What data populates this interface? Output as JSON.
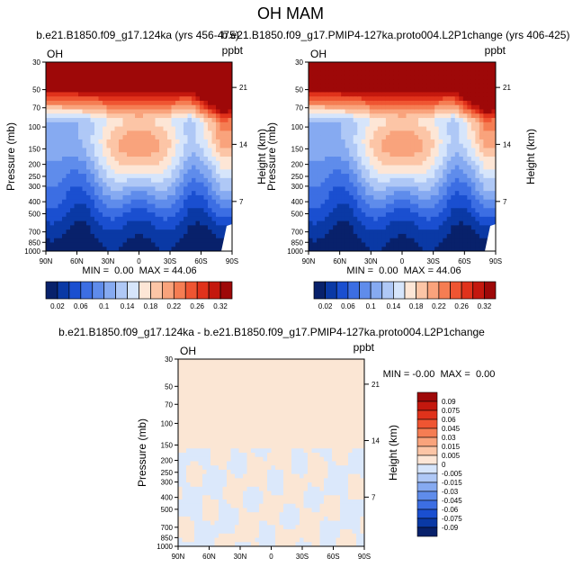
{
  "page_title": "OH MAM",
  "colors": {
    "diverging": [
      "#08216b",
      "#0a39a5",
      "#1a4fd0",
      "#3c6ee3",
      "#5f8ceb",
      "#86aaf1",
      "#afc8f6",
      "#d6e5fb",
      "#fde6d6",
      "#fcc5a6",
      "#f9a37c",
      "#f57d53",
      "#ef5532",
      "#e0321b",
      "#c4180e",
      "#9e0808"
    ],
    "plot_background": "#fbe6d4",
    "diff_negative": "#dbe8fb"
  },
  "chart_data": [
    {
      "type": "heatmap",
      "panel": "left",
      "title": "b.e21.B1850.f09_g17.124ka (yrs 456-475)",
      "left_label": "OH",
      "right_label": "ppbt",
      "xlabel": "",
      "ylabel": "Pressure (mb)",
      "right_axis_label": "Height (km)",
      "x_ticks": [
        "90N",
        "60N",
        "30N",
        "0",
        "30S",
        "60S",
        "90S"
      ],
      "x_tick_values": [
        90,
        60,
        30,
        0,
        -30,
        -60,
        -90
      ],
      "y_ticks": [
        "30",
        "50",
        "70",
        "100",
        "150",
        "200",
        "250",
        "300",
        "400",
        "500",
        "700",
        "850",
        "1000"
      ],
      "y_tick_values": [
        30,
        50,
        70,
        100,
        150,
        200,
        250,
        300,
        400,
        500,
        700,
        850,
        1000
      ],
      "height_ticks": [
        "21",
        "14",
        "7"
      ],
      "height_tick_pressures": [
        48,
        138,
        398
      ],
      "stats": {
        "min": "0.00",
        "max": "44.06",
        "text": "MIN =  0.00  MAX = 44.06"
      },
      "colorbar_labels": [
        "0.02",
        "0.06",
        "0.1",
        "0.14",
        "0.18",
        "0.22",
        "0.26",
        "0.32"
      ],
      "colorbar_levels": [
        0.02,
        0.04,
        0.06,
        0.08,
        0.1,
        0.12,
        0.14,
        0.16,
        0.18,
        0.2,
        0.22,
        0.24,
        0.26,
        0.28,
        0.32
      ],
      "ylim": [
        1000,
        30
      ],
      "xlim": [
        90,
        -90
      ]
    },
    {
      "type": "heatmap",
      "panel": "right",
      "title": "b.e21.B1850.f09_g17.PMIP4-127ka.proto004.L2P1change (yrs 406-425)",
      "left_label": "OH",
      "right_label": "ppbt",
      "xlabel": "",
      "ylabel": "Pressure (mb)",
      "right_axis_label": "Height (km)",
      "x_ticks": [
        "90N",
        "60N",
        "30N",
        "0",
        "30S",
        "60S",
        "90S"
      ],
      "x_tick_values": [
        90,
        60,
        30,
        0,
        -30,
        -60,
        -90
      ],
      "y_ticks": [
        "30",
        "50",
        "70",
        "100",
        "150",
        "200",
        "250",
        "300",
        "400",
        "500",
        "700",
        "850",
        "1000"
      ],
      "y_tick_values": [
        30,
        50,
        70,
        100,
        150,
        200,
        250,
        300,
        400,
        500,
        700,
        850,
        1000
      ],
      "height_ticks": [
        "21",
        "14",
        "7"
      ],
      "height_tick_pressures": [
        48,
        138,
        398
      ],
      "stats": {
        "min": "0.00",
        "max": "44.06",
        "text": "MIN =  0.00  MAX = 44.06"
      },
      "colorbar_labels": [
        "0.02",
        "0.06",
        "0.1",
        "0.14",
        "0.18",
        "0.22",
        "0.26",
        "0.32"
      ],
      "colorbar_levels": [
        0.02,
        0.04,
        0.06,
        0.08,
        0.1,
        0.12,
        0.14,
        0.16,
        0.18,
        0.2,
        0.22,
        0.24,
        0.26,
        0.28,
        0.32
      ],
      "ylim": [
        1000,
        30
      ],
      "xlim": [
        90,
        -90
      ]
    },
    {
      "type": "heatmap",
      "panel": "difference",
      "title": "b.e21.B1850.f09_g17.124ka - b.e21.B1850.f09_g17.PMIP4-127ka.proto004.L2P1change",
      "left_label": "OH",
      "right_label": "ppbt",
      "xlabel": "",
      "ylabel": "Pressure (mb)",
      "right_axis_label": "Height (km)",
      "x_ticks": [
        "90N",
        "60N",
        "30N",
        "0",
        "30S",
        "60S",
        "90S"
      ],
      "x_tick_values": [
        90,
        60,
        30,
        0,
        -30,
        -60,
        -90
      ],
      "y_ticks": [
        "30",
        "50",
        "70",
        "100",
        "150",
        "200",
        "250",
        "300",
        "400",
        "500",
        "700",
        "850",
        "1000"
      ],
      "y_tick_values": [
        30,
        50,
        70,
        100,
        150,
        200,
        250,
        300,
        400,
        500,
        700,
        850,
        1000
      ],
      "height_ticks": [
        "21",
        "14",
        "7"
      ],
      "height_tick_pressures": [
        48,
        138,
        398
      ],
      "stats": {
        "min": "-0.00",
        "max": "0.00",
        "text": "MIN = -0.00  MAX =  0.00"
      },
      "colorbar_labels": [
        "0.09",
        "0.075",
        "0.06",
        "0.045",
        "0.03",
        "0.015",
        "0.005",
        "0",
        "-0.005",
        "-0.015",
        "-0.03",
        "-0.045",
        "-0.06",
        "-0.075",
        "-0.09"
      ],
      "ylim": [
        1000,
        30
      ],
      "xlim": [
        90,
        -90
      ],
      "note": "difference field is ~0 everywhere: light orange above ~170 mb, mixed light blue / light orange patches below"
    }
  ]
}
